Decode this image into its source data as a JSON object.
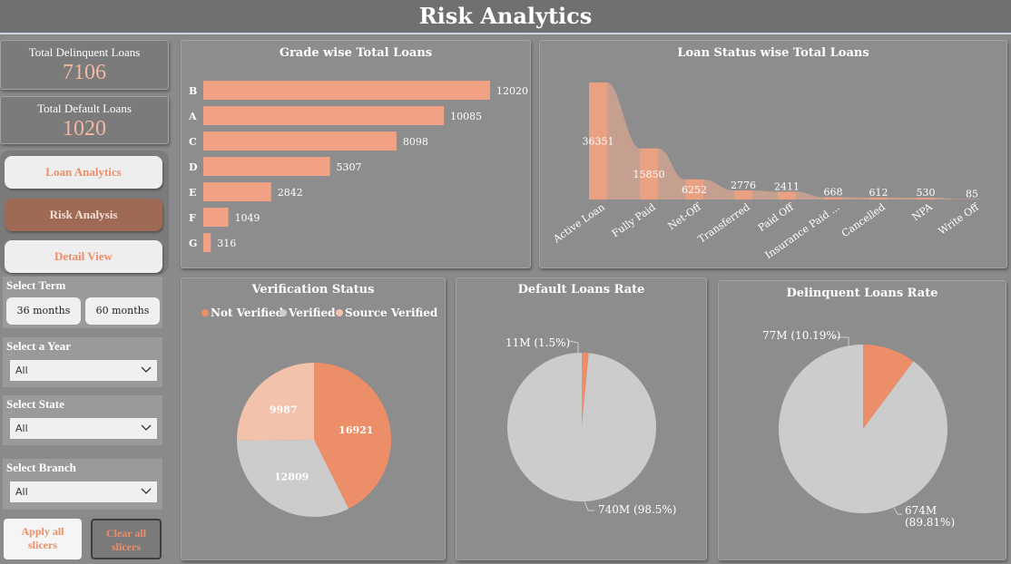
{
  "header": {
    "title": "Risk Analytics"
  },
  "kpis": {
    "delinquent": {
      "label": "Total Delinquent Loans",
      "value": "7106"
    },
    "default": {
      "label": "Total Default Loans",
      "value": "1020"
    }
  },
  "nav": {
    "loan_analytics": "Loan Analytics",
    "risk_analysis": "Risk Analysis",
    "detail_view": "Detail View"
  },
  "slicers": {
    "term": {
      "title": "Select Term",
      "options": [
        "36 months",
        "60 months"
      ]
    },
    "year": {
      "title": "Select a Year",
      "value": "All"
    },
    "state": {
      "title": "Select State",
      "value": "All"
    },
    "branch": {
      "title": "Select Branch",
      "value": "All"
    }
  },
  "actions": {
    "apply": [
      "Apply all",
      "slicers"
    ],
    "clear": [
      "Clear all",
      "slicers"
    ]
  },
  "colors": {
    "accent": "#ec8e68",
    "light_accent": "#f3c2ab",
    "grey_slice": "#cccccc",
    "bar": "#f2a284"
  },
  "chart_data": [
    {
      "type": "bar",
      "orientation": "horizontal",
      "title": "Grade wise Total Loans",
      "categories": [
        "B",
        "A",
        "C",
        "D",
        "E",
        "F",
        "G"
      ],
      "values": [
        12020,
        10085,
        8098,
        5307,
        2842,
        1049,
        316
      ]
    },
    {
      "type": "area",
      "title": "Loan Status wise Total Loans",
      "categories": [
        "Active Loan",
        "Fully Paid",
        "Net-Off",
        "Transferred",
        "Paid Off",
        "Insurance Paid ...",
        "Cancelled",
        "NPA",
        "Write Off"
      ],
      "values": [
        36351,
        15850,
        6252,
        2776,
        2411,
        668,
        612,
        530,
        85
      ]
    },
    {
      "type": "pie",
      "title": "Verification Status",
      "legend": "top",
      "labels": [
        "Not Verified",
        "Verified",
        "Source Verified"
      ],
      "values": [
        16921,
        12809,
        9987
      ],
      "colors": [
        "#ec8e68",
        "#cccccc",
        "#f3c2ab"
      ]
    },
    {
      "type": "pie",
      "title": "Default Loans Rate",
      "slices": [
        {
          "label": "11M (1.5%)",
          "value": 1.5,
          "color": "#ec8e68"
        },
        {
          "label": "740M (98.5%)",
          "value": 98.5,
          "color": "#cccccc"
        }
      ]
    },
    {
      "type": "pie",
      "title": "Delinquent Loans Rate",
      "slices": [
        {
          "label": "77M (10.19%)",
          "value": 10.19,
          "color": "#ec8e68"
        },
        {
          "label": "674M",
          "label2": "(89.81%)",
          "value": 89.81,
          "color": "#cccccc"
        }
      ]
    }
  ]
}
